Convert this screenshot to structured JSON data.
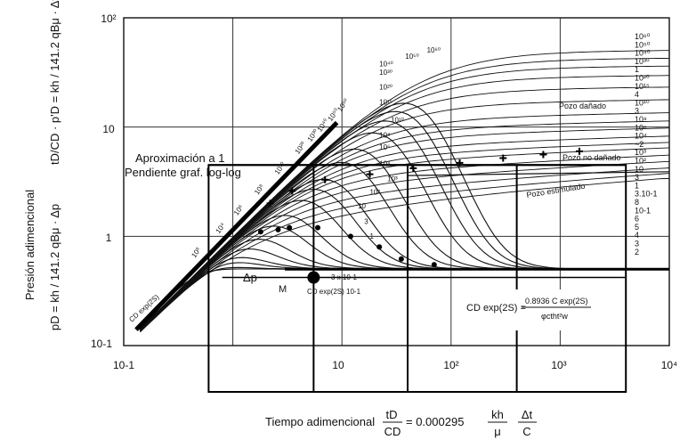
{
  "chart_data": {
    "type": "line",
    "scale": "log-log",
    "xlim": [
      0.1,
      10000
    ],
    "ylim": [
      0.1,
      100
    ],
    "grid": true,
    "x_tick_labels": [
      "10-1",
      "10",
      "10²",
      "10³",
      "10⁴"
    ],
    "y_tick_labels": [
      "10-1",
      "1",
      "10",
      "10²"
    ],
    "ylabel_lines": [
      "Presión adimencional",
      "pD = kh / 141.2 qBμ · Δp",
      "tD/CD · p'D = kh / 141.2 qBμ · Δt Δp'"
    ],
    "xlabel": {
      "prefix": "Tiempo adimencional",
      "frac1_num": "tD",
      "frac1_den": "CD",
      "eq": "= 0.000295",
      "frac2_num": "kh",
      "frac2_den": "μ",
      "frac3_num": "Δt",
      "frac3_den": "C"
    },
    "param_label": "CD exp(2S)",
    "param_values": [
      0.1,
      0.3,
      1,
      3,
      10,
      100,
      1000,
      10000,
      1000000.0,
      100000000.0,
      10000000000.0,
      1000000000000000.0,
      1e+20,
      1e+30,
      1e+40,
      1e+50,
      1e+60
    ],
    "right_labels": [
      "10⁶⁰",
      "10⁵⁰",
      "10⁴⁰",
      "10³⁰",
      "1",
      "10²⁰",
      "10¹⁵",
      "4",
      "10¹⁰",
      "3",
      "10⁸",
      "10⁶",
      "10⁴",
      "~2",
      "10³",
      "10²",
      "10",
      "3",
      "1",
      "3.10-1",
      "8",
      "10-1",
      "6",
      "5",
      "4",
      "3",
      "2"
    ],
    "left_slope_labels": [
      "10³",
      "10⁴",
      "10⁶",
      "10⁸",
      "10¹⁰",
      "10²⁰",
      "10³⁰",
      "10⁴⁰",
      "10⁵⁰",
      "10⁶⁰"
    ],
    "annotations": {
      "aprox": "Aproximación a 1",
      "pendiente": "Pendiente graf. log-log",
      "pozo_danado": "Pozo dañado",
      "pozo_no_danado": "Pozo no dañado",
      "pozo_estimulado": "Pozo estimulado",
      "delta_p": "Δp",
      "m": "M",
      "three_e": "3 x 10-1",
      "cd_small": "CD exp(2S) 10-1",
      "formula_lhs": "CD exp(2S) =",
      "formula_num": "0.8936 C exp(2S)",
      "formula_den": "φctht²w"
    },
    "inner_labels": [
      "10⁶⁰",
      "10⁵⁰",
      "10⁴⁰",
      "10³⁰",
      "10²⁰",
      "10¹⁵",
      "10¹⁰",
      "10⁸",
      "10⁶",
      "10⁴",
      "10³",
      "10²",
      "10",
      "3",
      "1"
    ],
    "series": [
      {
        "name": "1e60",
        "plateau": 45,
        "break_t": 60
      },
      {
        "name": "1e50",
        "plateau": 38,
        "break_t": 50
      },
      {
        "name": "1e40",
        "plateau": 32,
        "break_t": 40
      },
      {
        "name": "1e30",
        "plateau": 26,
        "break_t": 30
      },
      {
        "name": "1e20",
        "plateau": 20,
        "break_t": 20
      },
      {
        "name": "1e15",
        "plateau": 15,
        "break_t": 15
      },
      {
        "name": "1e10",
        "plateau": 11,
        "break_t": 10
      },
      {
        "name": "1e8",
        "plateau": 9,
        "break_t": 8
      },
      {
        "name": "1e6",
        "plateau": 7.5,
        "break_t": 6
      },
      {
        "name": "1e4",
        "plateau": 6,
        "break_t": 4
      },
      {
        "name": "1e3",
        "plateau": 5,
        "break_t": 3
      },
      {
        "name": "1e2",
        "plateau": 4.2,
        "break_t": 2
      },
      {
        "name": "10",
        "plateau": 3.3,
        "break_t": 1.5
      },
      {
        "name": "3",
        "plateau": 2.6,
        "break_t": 1.1
      },
      {
        "name": "1",
        "plateau": 2.0,
        "break_t": 0.9
      },
      {
        "name": "0.3",
        "plateau": 1.5,
        "break_t": 0.6
      },
      {
        "name": "0.1",
        "plateau": 1.1,
        "break_t": 0.4
      }
    ],
    "markers_plus": [
      [
        2.2,
        2.0
      ],
      [
        3.5,
        2.6
      ],
      [
        7,
        3.3
      ],
      [
        18,
        3.7
      ],
      [
        45,
        4.2
      ],
      [
        120,
        4.7
      ],
      [
        300,
        5.2
      ],
      [
        700,
        5.6
      ],
      [
        1500,
        6.0
      ]
    ],
    "markers_dot": [
      [
        1.8,
        1.1
      ],
      [
        2.6,
        1.15
      ],
      [
        3.3,
        1.2
      ],
      [
        6,
        1.2
      ],
      [
        12,
        1.0
      ],
      [
        22,
        0.8
      ],
      [
        35,
        0.62
      ],
      [
        70,
        0.55
      ]
    ]
  }
}
